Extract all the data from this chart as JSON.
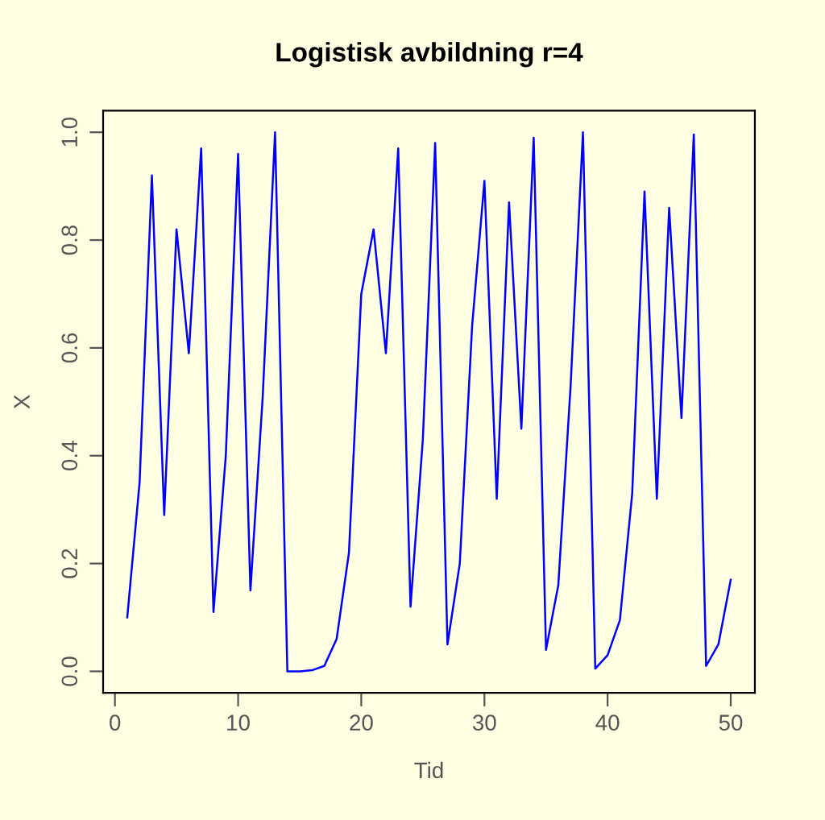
{
  "chart_data": {
    "type": "line",
    "title": "Logistisk avbildning r=4",
    "xlabel": "Tid",
    "ylabel": "X",
    "x": [
      1,
      2,
      3,
      4,
      5,
      6,
      7,
      8,
      9,
      10,
      11,
      12,
      13,
      14,
      15,
      16,
      17,
      18,
      19,
      20,
      21,
      22,
      23,
      24,
      25,
      26,
      27,
      28,
      29,
      30,
      31,
      32,
      33,
      34,
      35,
      36,
      37,
      38,
      39,
      40,
      41,
      42,
      43,
      44,
      45,
      46,
      47,
      48,
      49,
      50
    ],
    "series": [
      {
        "color": "#0000ff",
        "values": [
          0.1,
          0.35,
          0.92,
          0.29,
          0.82,
          0.59,
          0.97,
          0.11,
          0.4,
          0.96,
          0.15,
          0.51,
          1.0,
          0.0,
          0.0,
          0.002,
          0.01,
          0.06,
          0.22,
          0.7,
          0.82,
          0.59,
          0.97,
          0.12,
          0.43,
          0.98,
          0.05,
          0.2,
          0.64,
          0.91,
          0.32,
          0.87,
          0.45,
          0.99,
          0.04,
          0.16,
          0.53,
          1.0,
          0.005,
          0.03,
          0.095,
          0.33,
          0.89,
          0.32,
          0.86,
          0.47,
          0.996,
          0.01,
          0.05,
          0.17
        ]
      }
    ],
    "xlim": [
      -0.96,
      51.96
    ],
    "ylim": [
      -0.04,
      1.04
    ],
    "xticks": [
      0,
      10,
      20,
      30,
      40,
      50
    ],
    "yticks": [
      {
        "value": 0,
        "label": "0.0"
      },
      {
        "value": 0.2,
        "label": "0.2"
      },
      {
        "value": 0.4,
        "label": "0.4"
      },
      {
        "value": 0.6,
        "label": "0.6"
      },
      {
        "value": 0.8,
        "label": "0.8"
      },
      {
        "value": 1,
        "label": "1.0"
      }
    ],
    "grid": false,
    "legend": false,
    "marker": "none",
    "line_style": "solid"
  }
}
